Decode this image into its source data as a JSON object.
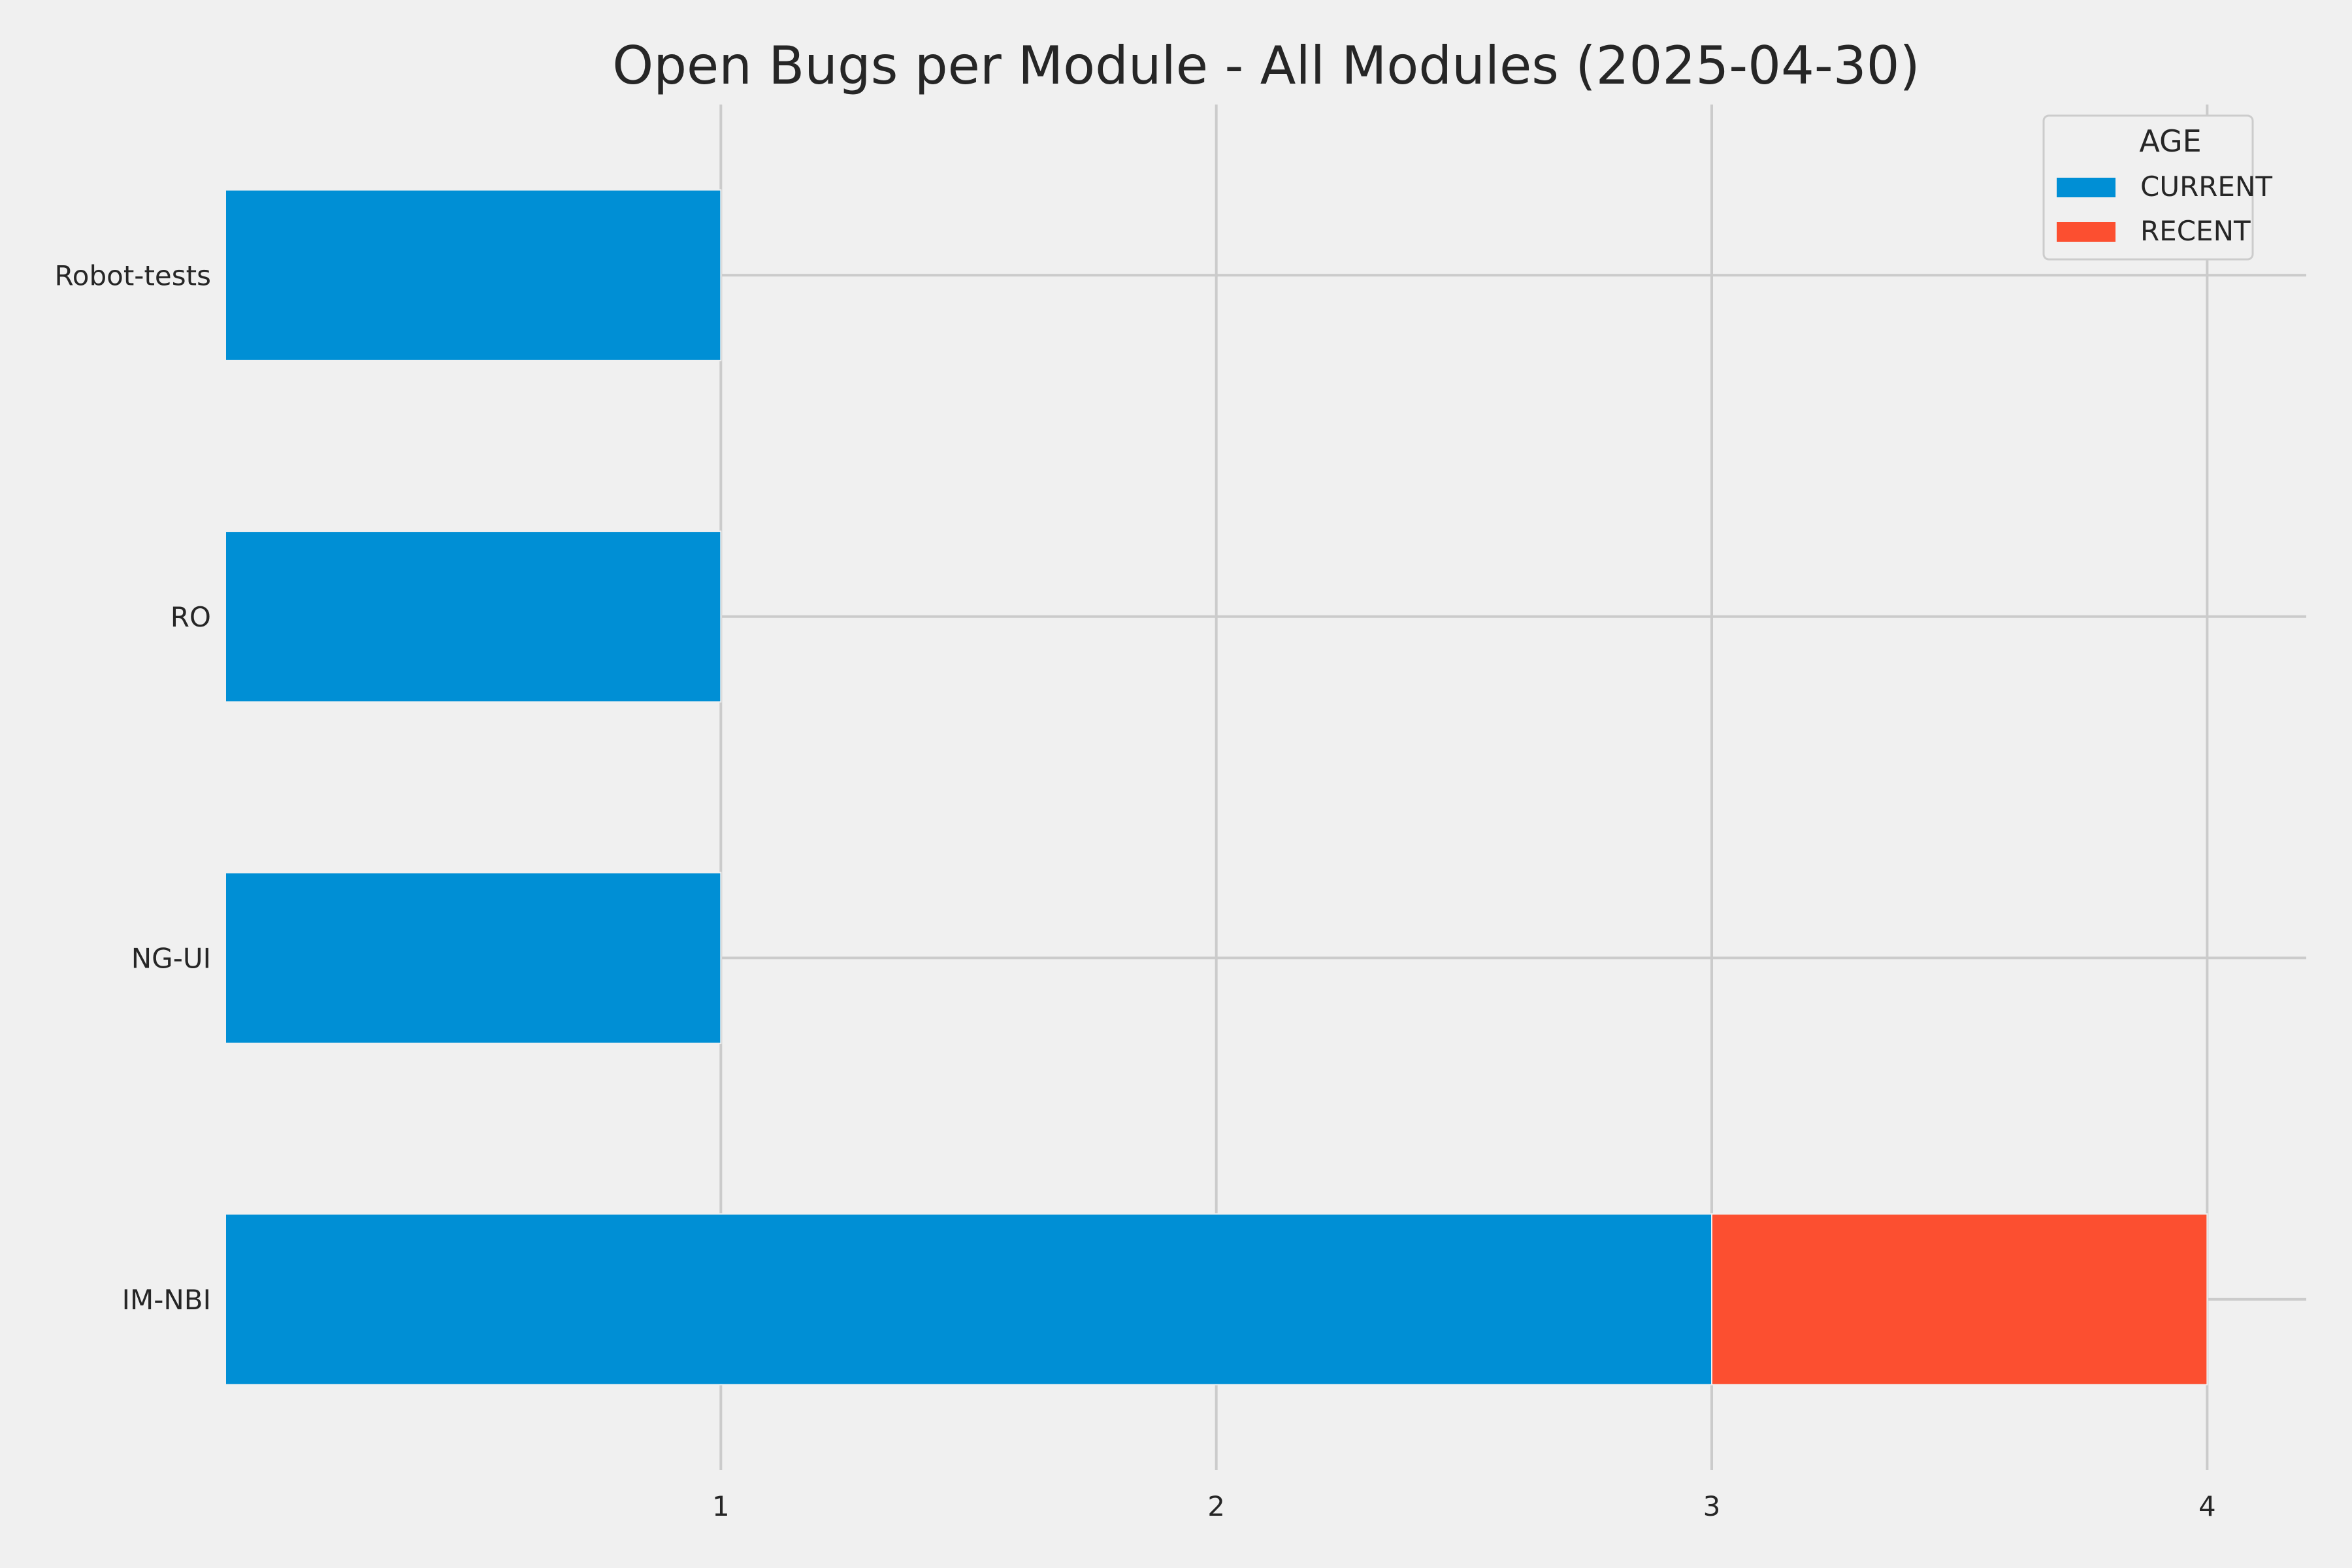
{
  "chart_data": {
    "type": "bar",
    "orientation": "horizontal",
    "stacked": true,
    "title": "Open Bugs per Module - All Modules (2025-04-30)",
    "xlabel": "",
    "ylabel": "",
    "categories": [
      "IM-NBI",
      "NG-UI",
      "RO",
      "Robot-tests"
    ],
    "series": [
      {
        "name": "CURRENT",
        "color": "#008fd5",
        "values": [
          3,
          1,
          1,
          1
        ]
      },
      {
        "name": "RECENT",
        "color": "#fc4f30",
        "values": [
          1,
          0,
          0,
          0
        ]
      }
    ],
    "xlim": [
      0,
      4.2
    ],
    "xticks": [
      1,
      2,
      3,
      4
    ],
    "legend": {
      "title": "AGE",
      "position": "top-right"
    },
    "grid": true,
    "background": "#f0f0f0"
  }
}
